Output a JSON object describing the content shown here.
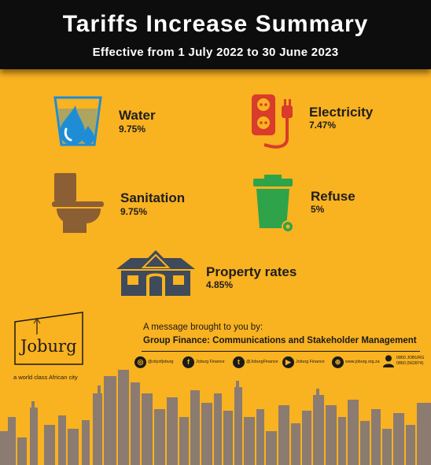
{
  "header": {
    "title": "Tariffs Increase Summary",
    "subtitle": "Effective from 1 July 2022 to 30 June 2023"
  },
  "tariffs": [
    {
      "name": "Water",
      "value": "9.75%",
      "icon": "water-glass-icon"
    },
    {
      "name": "Electricity",
      "value": "7.47%",
      "icon": "power-socket-icon"
    },
    {
      "name": "Sanitation",
      "value": "9.75%",
      "icon": "toilet-icon"
    },
    {
      "name": "Refuse",
      "value": "5%",
      "icon": "wheelie-bin-icon"
    },
    {
      "name": "Property rates",
      "value": "4.85%",
      "icon": "house-icon"
    }
  ],
  "branding": {
    "logo_text": "Joburg",
    "tagline": "a world class African city"
  },
  "message": {
    "line1": "A message brought to you by:",
    "line2": "Group Finance: Communications and Stakeholder Management"
  },
  "social": [
    {
      "label": "@cityofjoburg",
      "icon": "instagram-icon"
    },
    {
      "label": "Joburg Finance",
      "icon": "facebook-icon"
    },
    {
      "label": "@JoburgFinance",
      "icon": "twitter-icon"
    },
    {
      "label": "Joburg Finance",
      "icon": "youtube-icon"
    },
    {
      "label": "www.joburg.org.za",
      "icon": "globe-icon"
    }
  ],
  "contact": {
    "phone_line1": "0860 JOBURG",
    "phone_line2": "0860 (562874)",
    "icon": "person-icon"
  },
  "colors": {
    "background": "#f9b220",
    "header": "#0d0d0d",
    "icons": "#8b5e34",
    "water": "#1f8dd6",
    "electricity": "#d93c2a",
    "refuse": "#2fa34a",
    "house": "#3f4a5a",
    "skyline": "#8b7b70"
  }
}
